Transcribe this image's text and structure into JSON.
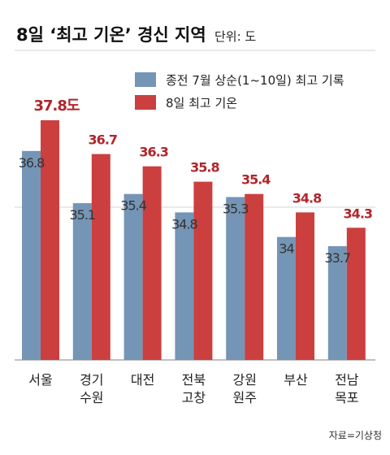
{
  "title": "8일 ‘최고 기온’ 경신 지역",
  "unit_label": "단위: 도",
  "source": "자료=기상청",
  "colors": {
    "series1": "#7495b5",
    "series2": "#cc3f3f",
    "red_label": "#b0252b"
  },
  "chart_data": {
    "type": "bar",
    "title": "8일 ‘최고 기온’ 경신 지역",
    "unit": "단위: 도",
    "categories": [
      [
        "서울"
      ],
      [
        "경기",
        "수원"
      ],
      [
        "대전"
      ],
      [
        "전북",
        "고창"
      ],
      [
        "강원",
        "원주"
      ],
      [
        "부산"
      ],
      [
        "전남",
        "목포"
      ]
    ],
    "series": [
      {
        "name": "종전 7월 상순(1~10일) 최고 기록",
        "values": [
          36.8,
          35.1,
          35.4,
          34.8,
          35.3,
          34,
          33.7
        ],
        "labels": [
          "36.8",
          "35.1",
          "35.4",
          "34.8",
          "35.3",
          "34",
          "33.7"
        ]
      },
      {
        "name": "8일 최고 기온",
        "values": [
          37.8,
          36.7,
          36.3,
          35.8,
          35.4,
          34.8,
          34.3
        ],
        "labels": [
          "37.8도",
          "36.7",
          "36.3",
          "35.8",
          "35.4",
          "34.8",
          "34.3"
        ]
      }
    ],
    "legend_position": "top-right",
    "grid": true
  }
}
